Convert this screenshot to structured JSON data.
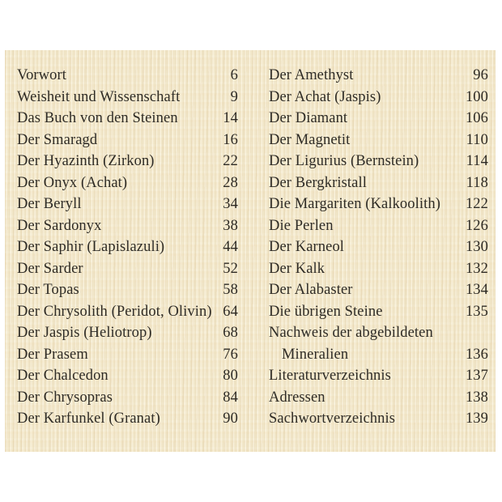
{
  "colors": {
    "paper": "#f4ebd1",
    "ink": "#2e2b25",
    "background": "#ffffff"
  },
  "toc": {
    "left": [
      {
        "label": "Vorwort",
        "page": "6"
      },
      {
        "label": "Weisheit und Wissenschaft",
        "page": "9"
      },
      {
        "label": "Das Buch von den Steinen",
        "page": "14"
      },
      {
        "label": "Der Smaragd",
        "page": "16"
      },
      {
        "label": "Der Hyazinth (Zirkon)",
        "page": "22"
      },
      {
        "label": "Der Onyx (Achat)",
        "page": "28"
      },
      {
        "label": "Der Beryll",
        "page": "34"
      },
      {
        "label": "Der Sardonyx",
        "page": "38"
      },
      {
        "label": "Der Saphir (Lapislazuli)",
        "page": "44"
      },
      {
        "label": "Der Sarder",
        "page": "52"
      },
      {
        "label": "Der Topas",
        "page": "58"
      },
      {
        "label": "Der Chrysolith (Peridot, Olivin)",
        "page": "64"
      },
      {
        "label": "Der Jaspis (Heliotrop)",
        "page": "68"
      },
      {
        "label": "Der Prasem",
        "page": "76"
      },
      {
        "label": "Der Chalcedon",
        "page": "80"
      },
      {
        "label": "Der Chrysopras",
        "page": "84"
      },
      {
        "label": "Der Karfunkel (Granat)",
        "page": "90"
      }
    ],
    "right": [
      {
        "label": "Der Amethyst",
        "page": "96"
      },
      {
        "label": "Der Achat (Jaspis)",
        "page": "100"
      },
      {
        "label": "Der Diamant",
        "page": "106"
      },
      {
        "label": "Der Magnetit",
        "page": "110"
      },
      {
        "label": "Der Ligurius (Bernstein)",
        "page": "114"
      },
      {
        "label": "Der Bergkristall",
        "page": "118"
      },
      {
        "label": "Die Margariten (Kalkoolith)",
        "page": "122"
      },
      {
        "label": "Die Perlen",
        "page": "126"
      },
      {
        "label": "Der Karneol",
        "page": "130"
      },
      {
        "label": "Der Kalk",
        "page": "132"
      },
      {
        "label": "Der Alabaster",
        "page": "134"
      },
      {
        "label": "Die übrigen Steine",
        "page": "135"
      },
      {
        "label": "Nachweis der abgebildeten",
        "page": ""
      },
      {
        "label": "Mineralien",
        "page": "136",
        "indent": true
      },
      {
        "label": "Literaturverzeichnis",
        "page": "137"
      },
      {
        "label": "Adressen",
        "page": "138"
      },
      {
        "label": "Sachwortverzeichnis",
        "page": "139"
      }
    ]
  }
}
